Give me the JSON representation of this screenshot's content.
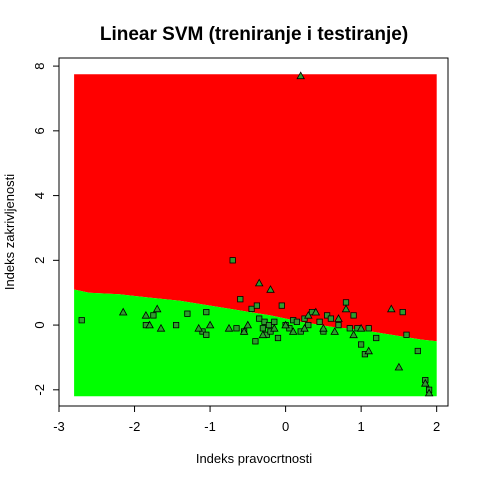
{
  "chart_data": {
    "type": "scatter",
    "title": "Linear SVM (treniranje i testiranje)",
    "xlabel": "Indeks pravocrtnosti",
    "ylabel": "Indeks zakrivljenosti",
    "xlim": [
      -3,
      2.15
    ],
    "ylim": [
      -2.5,
      8.25
    ],
    "xticks": [
      -3,
      -2,
      -1,
      0,
      1,
      2
    ],
    "yticks": [
      -2,
      0,
      2,
      4,
      6,
      8
    ],
    "xtick_labels": [
      "-3",
      "-2",
      "-1",
      "0",
      "1",
      "2"
    ],
    "ytick_labels": [
      "-2",
      "0",
      "2",
      "4",
      "6",
      "8"
    ],
    "grid": false,
    "legend": "none",
    "colors": {
      "region_upper": "#ff0000",
      "region_lower": "#00ff00",
      "points": "#2e9d2e",
      "outline": "#000000"
    },
    "regions": {
      "x_range": [
        -2.8,
        2.0
      ],
      "y_range": [
        -2.2,
        7.75
      ],
      "boundary": [
        [
          -2.8,
          1.1
        ],
        [
          -2.6,
          1.0
        ],
        [
          -2.2,
          0.95
        ],
        [
          -1.8,
          0.85
        ],
        [
          -1.4,
          0.75
        ],
        [
          -1.0,
          0.6
        ],
        [
          -0.6,
          0.45
        ],
        [
          -0.2,
          0.3
        ],
        [
          0.2,
          0.1
        ],
        [
          0.6,
          -0.05
        ],
        [
          1.0,
          -0.15
        ],
        [
          1.4,
          -0.3
        ],
        [
          1.8,
          -0.45
        ],
        [
          2.0,
          -0.5
        ]
      ]
    },
    "series": [
      {
        "marker": "square",
        "x": [
          -2.7,
          -1.85,
          -1.75,
          -1.45,
          -1.3,
          -1.1,
          -1.05,
          -1.05,
          -0.7,
          -0.65,
          -0.6,
          -0.55,
          -0.45,
          -0.4,
          -0.38,
          -0.35,
          -0.3,
          -0.28,
          -0.25,
          -0.22,
          -0.2,
          -0.15,
          -0.1,
          -0.05,
          0.0,
          0.05,
          0.1,
          0.15,
          0.2,
          0.25,
          0.3,
          0.35,
          0.45,
          0.5,
          0.55,
          0.6,
          0.7,
          0.8,
          0.85,
          0.9,
          0.95,
          1.0,
          1.05,
          1.1,
          1.2,
          1.55,
          1.6,
          1.75,
          1.85,
          1.9
        ],
        "y": [
          0.15,
          0.0,
          0.3,
          0.0,
          0.35,
          -0.2,
          -0.3,
          0.4,
          2.0,
          -0.1,
          0.8,
          -0.2,
          0.5,
          -0.5,
          0.6,
          0.2,
          -0.1,
          0.1,
          -0.3,
          0.0,
          -0.2,
          0.1,
          -0.4,
          0.6,
          0.0,
          -0.1,
          0.15,
          0.1,
          -0.2,
          0.2,
          0.0,
          0.4,
          0.1,
          -0.2,
          0.3,
          0.2,
          0.0,
          0.7,
          -0.1,
          0.3,
          -0.1,
          -0.6,
          -0.9,
          -0.1,
          -0.4,
          0.4,
          -0.3,
          -0.8,
          -1.7,
          -2.0
        ]
      },
      {
        "marker": "triangle",
        "x": [
          -2.15,
          -1.85,
          -1.8,
          -1.7,
          -1.65,
          -1.15,
          -1.0,
          -0.75,
          -0.55,
          -0.5,
          -0.35,
          -0.3,
          -0.2,
          -0.15,
          0.0,
          0.1,
          0.2,
          0.25,
          0.3,
          0.4,
          0.5,
          0.65,
          0.7,
          0.8,
          0.9,
          1.0,
          1.1,
          1.4,
          1.5,
          1.85,
          1.9
        ],
        "y": [
          0.4,
          0.3,
          0.0,
          0.5,
          -0.1,
          -0.1,
          0.0,
          -0.1,
          -0.2,
          0.0,
          1.3,
          -0.3,
          1.1,
          -0.1,
          0.0,
          -0.2,
          7.7,
          -0.1,
          0.3,
          0.4,
          -0.1,
          -0.2,
          0.2,
          0.5,
          -0.3,
          -0.1,
          -0.8,
          0.5,
          -1.3,
          -1.8,
          -2.1
        ]
      }
    ]
  }
}
